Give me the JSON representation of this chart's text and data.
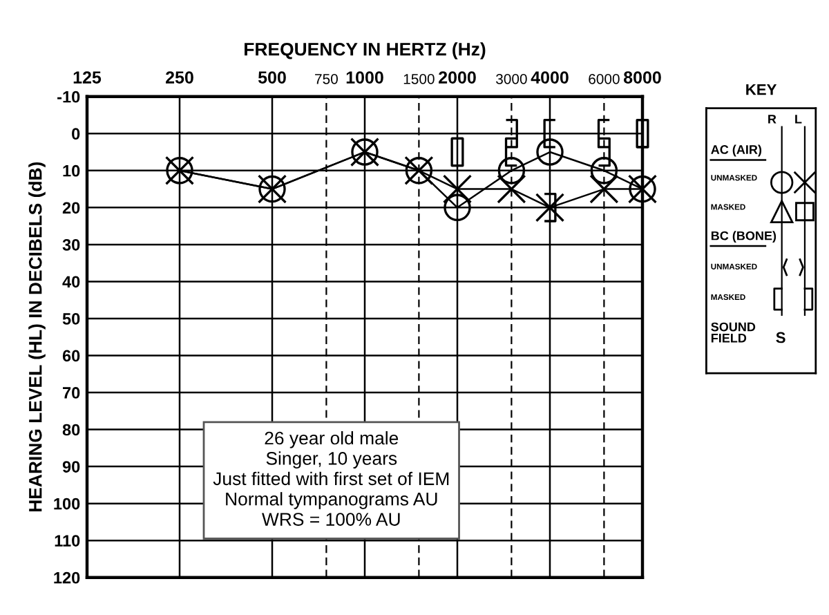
{
  "chart_data": [
    {
      "type": "line",
      "xlabel": "FREQUENCY IN HERTZ (Hz)",
      "ylabel": "HEARING LEVEL (HL) IN DECIBELS (dB)",
      "log": "x",
      "xlim": [
        125,
        8000
      ],
      "xticks": [
        125,
        250,
        500,
        750,
        1000,
        1500,
        2000,
        3000,
        4000,
        6000,
        8000
      ],
      "ylim": [
        120,
        -10
      ],
      "yticks": [
        -10,
        0,
        10,
        20,
        30,
        40,
        50,
        60,
        70,
        80,
        90,
        100,
        110,
        120
      ],
      "grid": true,
      "series": [
        {
          "type": "line",
          "marker": "circle",
          "color": "#000000",
          "x": [
            250,
            500,
            1000,
            1500,
            2000,
            3000,
            4000,
            6000,
            8000
          ],
          "values": [
            10,
            15,
            5,
            10,
            20,
            10,
            5,
            10,
            15
          ]
        },
        {
          "type": "line",
          "marker": "cross",
          "color": "#000000",
          "x": [
            250,
            500,
            1000,
            1500,
            2000,
            3000,
            4000,
            6000,
            8000
          ],
          "values": [
            10,
            15,
            5,
            10,
            15,
            15,
            20,
            15,
            15
          ]
        },
        {
          "type": "scatter",
          "color": "#000000",
          "x": [
            2000,
            3000,
            4000,
            6000,
            8000
          ],
          "values": [
            5,
            5,
            0,
            0,
            0
          ]
        },
        {
          "type": "scatter",
          "color": "#000000",
          "x": [
            2000,
            3000,
            4000,
            6000,
            8000
          ],
          "values": [
            5,
            0,
            20,
            5,
            0
          ]
        }
      ],
      "annotations": [
        "26 year old male\nSinger, 10 years\nJust fitted with first set of IEM\nNormal tympanograms AU\nWRS = 100% AU"
      ]
    },
    {
      "type": "other",
      "title": "KEY",
      "annotations": [
        "R",
        "L",
        "AC (AIR)",
        "UNMASKED",
        "MASKED",
        "BC (BONE)",
        "UNMASKED",
        "MASKED",
        "SOUND\nFIELD",
        "S"
      ]
    }
  ]
}
